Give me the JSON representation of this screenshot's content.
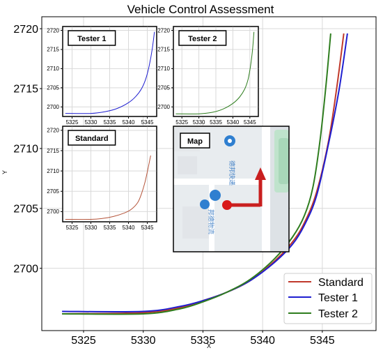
{
  "chart_data": [
    {
      "type": "line",
      "title": "Vehicle Control Assessment",
      "xlabel": "X",
      "ylabel": "Y",
      "xlim": [
        5321.5,
        5349.5
      ],
      "ylim": [
        2694.8,
        2721.0
      ],
      "xticks": [
        5325,
        5330,
        5335,
        5340,
        5345
      ],
      "yticks": [
        2700,
        2705,
        2710,
        2715,
        2720
      ],
      "grid": true,
      "legend": "bottom-right",
      "series": [
        {
          "name": "Standard",
          "color": "#c0392b",
          "x": [
            5323.2,
            5330,
            5333,
            5335,
            5337,
            5339,
            5341,
            5342.5,
            5343.5,
            5344.5,
            5345.5,
            5346.2,
            5346.8
          ],
          "y": [
            2696.2,
            2696.3,
            2696.7,
            2697.3,
            2698.0,
            2699.0,
            2700.6,
            2702.2,
            2703.8,
            2706.3,
            2710.5,
            2715.0,
            2719.6
          ]
        },
        {
          "name": "Tester 1",
          "color": "#1f1fd0",
          "x": [
            5323.2,
            5330,
            5333,
            5335,
            5337,
            5339,
            5341,
            5342.5,
            5343.5,
            5344.5,
            5345.5,
            5346.4,
            5347.1
          ],
          "y": [
            2696.4,
            2696.4,
            2696.8,
            2697.3,
            2698.0,
            2699.0,
            2700.5,
            2702.0,
            2703.6,
            2706.0,
            2710.3,
            2714.9,
            2719.6
          ]
        },
        {
          "name": "Tester 2",
          "color": "#2e7d1e",
          "x": [
            5323.2,
            5330,
            5333,
            5335,
            5337,
            5339,
            5341,
            5342.5,
            5343.5,
            5344.2,
            5344.8,
            5345.3,
            5345.7
          ],
          "y": [
            2696.2,
            2696.2,
            2696.6,
            2697.2,
            2698.0,
            2699.1,
            2700.8,
            2702.6,
            2704.4,
            2706.7,
            2710.6,
            2715.2,
            2719.6
          ]
        }
      ]
    },
    {
      "type": "line",
      "inset_label": "Tester 1",
      "xlim": [
        5322.5,
        5347.5
      ],
      "ylim": [
        2697.5,
        2721.0
      ],
      "xticks": [
        5325,
        5330,
        5335,
        5340,
        5345
      ],
      "yticks": [
        2700,
        2705,
        2710,
        2715,
        2720
      ],
      "grid": true,
      "series": [
        {
          "color": "#1f1fd0",
          "x": [
            5323.2,
            5330,
            5334,
            5337,
            5340,
            5342,
            5343.5,
            5344.6,
            5345.5,
            5346.3,
            5346.9
          ],
          "y": [
            2698.3,
            2698.3,
            2698.8,
            2699.6,
            2701.1,
            2702.8,
            2704.8,
            2707.3,
            2710.7,
            2715.0,
            2719.6
          ]
        }
      ]
    },
    {
      "type": "line",
      "inset_label": "Tester 2",
      "xlim": [
        5322.5,
        5347.5
      ],
      "ylim": [
        2697.5,
        2721.0
      ],
      "xticks": [
        5325,
        5330,
        5335,
        5340,
        5345
      ],
      "yticks": [
        2700,
        2705,
        2710,
        2715,
        2720
      ],
      "grid": true,
      "series": [
        {
          "color": "#2e7d1e",
          "x": [
            5323.2,
            5330,
            5334,
            5337,
            5340,
            5342,
            5343.5,
            5344.5,
            5345.2,
            5345.8,
            5346.2
          ],
          "y": [
            2698.2,
            2698.2,
            2698.6,
            2699.4,
            2700.9,
            2702.6,
            2704.7,
            2707.3,
            2710.7,
            2715.0,
            2719.6
          ]
        }
      ]
    },
    {
      "type": "line",
      "inset_label": "Standard",
      "xlim": [
        5322.5,
        5347.5
      ],
      "ylim": [
        2697.5,
        2721.0
      ],
      "xticks": [
        5325,
        5330,
        5335,
        5340,
        5345
      ],
      "yticks": [
        2700,
        2705,
        2710,
        2715,
        2720
      ],
      "grid": true,
      "series": [
        {
          "color": "#b5543a",
          "x": [
            5323.2,
            5330,
            5333,
            5336,
            5339,
            5340.8,
            5342.5,
            5343.5,
            5344.4,
            5345.2,
            5345.9
          ],
          "y": [
            2698.1,
            2698.1,
            2698.3,
            2698.8,
            2699.7,
            2700.6,
            2702.3,
            2704.5,
            2707.3,
            2710.6,
            2713.8
          ]
        }
      ]
    }
  ],
  "map": {
    "label": "Map",
    "place_labels": [
      "德邦快递",
      "邦德物流"
    ],
    "colors": {
      "background": "#e8ecef",
      "road": "#ffffff",
      "green": "#bfe3cc",
      "marker": "#2f7fd0",
      "arrow": "#c91f1f"
    }
  }
}
